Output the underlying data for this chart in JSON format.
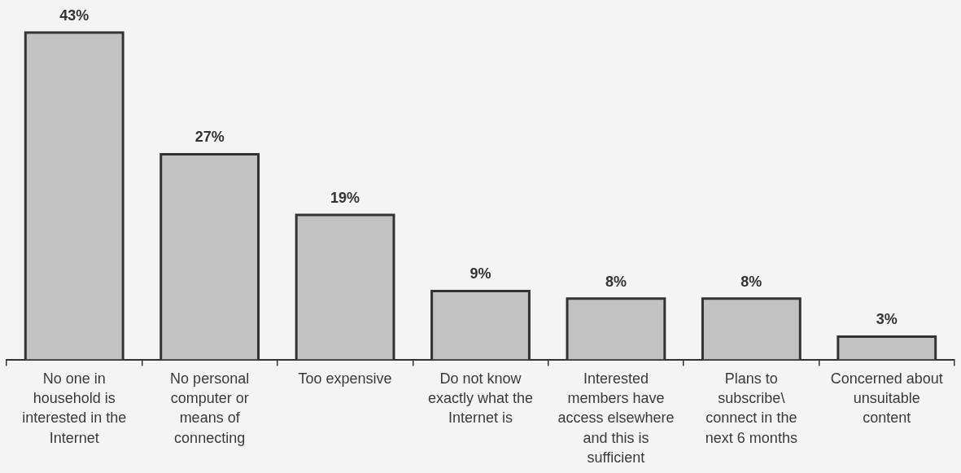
{
  "chart_data": {
    "type": "bar",
    "categories": [
      "No one in household is interested in the Internet",
      "No personal computer or means of connecting",
      "Too expensive",
      "Do not know exactly what the Internet is",
      "Interested members have access elsewhere and this is sufficient",
      "Plans to subscribe\\ connect in the next 6 months",
      "Concerned about unsuitable content"
    ],
    "values": [
      43,
      27,
      19,
      9,
      8,
      8,
      3
    ],
    "color": "#c2c2c2",
    "value_labels": [
      "43%",
      "27%",
      "19%",
      "9%",
      "8%",
      "8%",
      "3%"
    ]
  }
}
